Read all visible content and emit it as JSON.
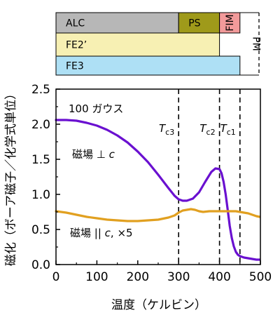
{
  "phase_diagram": {
    "rows": [
      [
        {
          "label": "ALC",
          "from": 0,
          "to": 300,
          "color": "#b7b7b7"
        },
        {
          "label": "PS",
          "from": 300,
          "to": 400,
          "color": "#9f9a1a"
        },
        {
          "label": "FIM",
          "from": 400,
          "to": 450,
          "color": "#f29a9a",
          "vertical": true
        }
      ],
      [
        {
          "label": "FE2’",
          "from": 0,
          "to": 400,
          "color": "#f7f0b3"
        }
      ],
      [
        {
          "label": "FE3",
          "from": 0,
          "to": 450,
          "color": "#aee0f5"
        }
      ]
    ],
    "pm_label": "PM",
    "pm_from": 450,
    "pm_to": 500
  },
  "chart_data": {
    "type": "line",
    "xlabel": "温度（ケルビン）",
    "ylabel": "磁化（ボーア磁子／化学式単位）",
    "xlim": [
      0,
      500
    ],
    "ylim": [
      0,
      2.5
    ],
    "x_ticks": [
      "0",
      "100",
      "200",
      "300",
      "400",
      "500"
    ],
    "y_ticks": [
      "0.0",
      "0.5",
      "1.0",
      "1.5",
      "2.0",
      "2.5"
    ],
    "annotation_field": "100 ガウス",
    "transitions": [
      {
        "label_main": "T",
        "label_sub": "c3",
        "x": 300
      },
      {
        "label_main": "T",
        "label_sub": "c2",
        "x": 400
      },
      {
        "label_main": "T",
        "label_sub": "c1",
        "x": 450
      }
    ],
    "series": [
      {
        "label_text": "磁場 ⊥ ",
        "label_italic": "c",
        "color": "#6a10d0",
        "x": [
          0,
          25,
          50,
          75,
          100,
          125,
          150,
          175,
          200,
          225,
          250,
          275,
          290,
          300,
          310,
          320,
          335,
          350,
          365,
          380,
          390,
          400,
          405,
          410,
          415,
          420,
          425,
          430,
          435,
          440,
          445,
          450,
          455,
          460,
          470,
          480,
          490,
          498
        ],
        "y": [
          2.06,
          2.06,
          2.05,
          2.02,
          1.98,
          1.92,
          1.84,
          1.74,
          1.61,
          1.46,
          1.28,
          1.09,
          0.98,
          0.93,
          0.91,
          0.91,
          0.94,
          1.03,
          1.18,
          1.32,
          1.37,
          1.36,
          1.3,
          1.18,
          1.0,
          0.78,
          0.55,
          0.38,
          0.26,
          0.18,
          0.14,
          0.12,
          0.11,
          0.1,
          0.09,
          0.08,
          0.07,
          0.07
        ]
      },
      {
        "label_text": "磁場 || ",
        "label_italic": "c",
        "label_suffix": ", ×5",
        "color": "#e1a020",
        "x": [
          0,
          25,
          50,
          75,
          100,
          125,
          150,
          175,
          200,
          225,
          250,
          275,
          290,
          300,
          310,
          320,
          330,
          340,
          350,
          360,
          375,
          390,
          400,
          410,
          425,
          440,
          450,
          460,
          470,
          480,
          490,
          498
        ],
        "y": [
          0.76,
          0.74,
          0.71,
          0.68,
          0.66,
          0.64,
          0.63,
          0.62,
          0.62,
          0.63,
          0.64,
          0.67,
          0.7,
          0.74,
          0.77,
          0.78,
          0.79,
          0.78,
          0.76,
          0.75,
          0.76,
          0.76,
          0.76,
          0.76,
          0.76,
          0.76,
          0.75,
          0.74,
          0.73,
          0.71,
          0.69,
          0.68
        ]
      }
    ]
  }
}
